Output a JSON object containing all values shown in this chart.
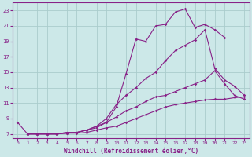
{
  "background_color": "#cce8e8",
  "grid_color": "#aacccc",
  "line_color": "#882288",
  "xlabel": "Windchill (Refroidissement éolien,°C)",
  "xlim": [
    -0.5,
    23.5
  ],
  "ylim": [
    6.5,
    24.0
  ],
  "yticks": [
    7,
    9,
    11,
    13,
    15,
    17,
    19,
    21,
    23
  ],
  "xticks": [
    0,
    1,
    2,
    3,
    4,
    5,
    6,
    7,
    8,
    9,
    10,
    11,
    12,
    13,
    14,
    15,
    16,
    17,
    18,
    19,
    20,
    21,
    22,
    23
  ],
  "series": [
    {
      "x": [
        0,
        1,
        2,
        3,
        4,
        5,
        6,
        7,
        8,
        9,
        10,
        11,
        12,
        13,
        14,
        15,
        16,
        17,
        18,
        19,
        20,
        21
      ],
      "y": [
        8.5,
        7.0,
        7.0,
        7.0,
        7.0,
        7.2,
        7.2,
        7.5,
        7.8,
        8.5,
        10.5,
        14.8,
        19.3,
        19.0,
        21.0,
        21.2,
        22.8,
        23.2,
        20.8,
        21.2,
        20.5,
        19.5
      ]
    },
    {
      "x": [
        1,
        2,
        3,
        4,
        5,
        6,
        7,
        8,
        9,
        10,
        11,
        12,
        13,
        14,
        15,
        16,
        17,
        18,
        19,
        20,
        21,
        22,
        23
      ],
      "y": [
        7.0,
        7.0,
        7.0,
        7.0,
        7.2,
        7.2,
        7.5,
        8.0,
        9.0,
        10.8,
        12.0,
        13.0,
        14.2,
        15.0,
        16.5,
        17.8,
        18.5,
        19.2,
        20.5,
        15.5,
        14.0,
        13.2,
        12.0
      ]
    },
    {
      "x": [
        1,
        2,
        3,
        4,
        5,
        6,
        7,
        8,
        9,
        10,
        11,
        12,
        13,
        14,
        15,
        16,
        17,
        18,
        19,
        20,
        21,
        22,
        23
      ],
      "y": [
        7.0,
        7.0,
        7.0,
        7.0,
        7.1,
        7.2,
        7.5,
        8.0,
        8.5,
        9.2,
        10.0,
        10.5,
        11.2,
        11.8,
        12.0,
        12.5,
        13.0,
        13.5,
        14.0,
        15.2,
        13.5,
        12.0,
        11.5
      ]
    },
    {
      "x": [
        1,
        2,
        3,
        4,
        5,
        6,
        7,
        8,
        9,
        10,
        11,
        12,
        13,
        14,
        15,
        16,
        17,
        18,
        19,
        20,
        21,
        22,
        23
      ],
      "y": [
        7.0,
        7.0,
        7.0,
        7.0,
        7.1,
        7.1,
        7.2,
        7.5,
        7.8,
        8.0,
        8.5,
        9.0,
        9.5,
        10.0,
        10.5,
        10.8,
        11.0,
        11.2,
        11.4,
        11.5,
        11.5,
        11.7,
        11.8
      ]
    }
  ]
}
